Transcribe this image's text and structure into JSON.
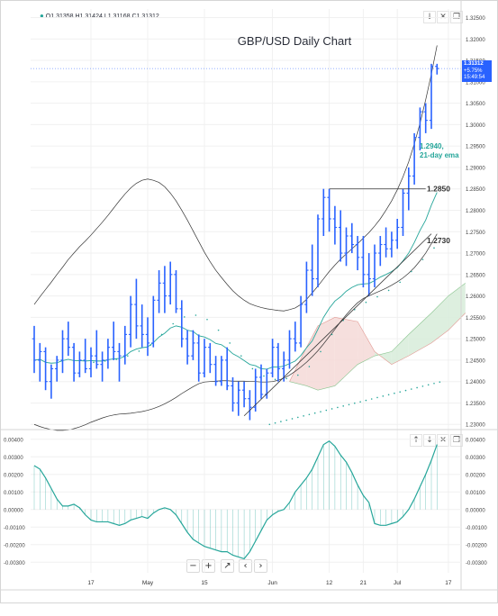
{
  "ohlc_header": {
    "marker": "●",
    "open": "O1.31358",
    "high": "H1.31424",
    "low": "L1.31168",
    "close": "C1.31312"
  },
  "main_buttons": [
    "↓",
    "✕",
    "❐"
  ],
  "sub_buttons": [
    "↑",
    "↓",
    "✕",
    "❐"
  ],
  "nav_buttons": [
    "−",
    "+",
    "↗",
    "‹",
    "›"
  ],
  "price_tag": {
    "price": "1.31312",
    "change": "+5.75%",
    "time": "15:49:54"
  },
  "colors": {
    "candle": "#2962ff",
    "ema": "#26a69a",
    "bands": "#333333",
    "cloud_bull": "#d7ecd9",
    "cloud_bear": "#f4d9d7",
    "oscillator": "#26a69a",
    "annotation": "#26a69a"
  },
  "chart_data": [
    {
      "type": "candlestick",
      "title": "GBP/USD Daily Chart",
      "yticks": [
        "1.32500",
        "1.32000",
        "1.31500",
        "1.31000",
        "1.30500",
        "1.30000",
        "1.29500",
        "1.29000",
        "1.28500",
        "1.28000",
        "1.27500",
        "1.27000",
        "1.26500",
        "1.26000",
        "1.25500",
        "1.25000",
        "1.24500",
        "1.24000",
        "1.23500",
        "1.23000"
      ],
      "ylim": [
        1.229,
        1.327
      ],
      "x_labels": [
        {
          "label": "17",
          "i": 10
        },
        {
          "label": "May",
          "i": 20
        },
        {
          "label": "15",
          "i": 30
        },
        {
          "label": "Jun",
          "i": 42
        },
        {
          "label": "12",
          "i": 52
        },
        {
          "label": "21",
          "i": 58
        },
        {
          "label": "Jul",
          "i": 64
        },
        {
          "label": "17",
          "i": 73
        }
      ],
      "annotations": [
        {
          "text": "1.2940,",
          "line2": "21-day ema",
          "price": 1.294,
          "color": "#26a69a"
        },
        {
          "text": "1.2850",
          "price": 1.285,
          "color": "#333333"
        },
        {
          "text": "1.2730",
          "price": 1.273,
          "color": "#333333"
        }
      ],
      "resistance": {
        "price": 1.285,
        "from_i": 52,
        "to_i": 69
      },
      "trendline": {
        "from": {
          "i": 37,
          "p": 1.232
        },
        "to": {
          "i": 70,
          "p": 1.2745
        }
      },
      "ohlc": [
        [
          1.25,
          1.253,
          1.242,
          1.245
        ],
        [
          1.245,
          1.249,
          1.24,
          1.247
        ],
        [
          1.247,
          1.248,
          1.238,
          1.24
        ],
        [
          1.24,
          1.244,
          1.236,
          1.243
        ],
        [
          1.243,
          1.246,
          1.24,
          1.245
        ],
        [
          1.245,
          1.252,
          1.242,
          1.25
        ],
        [
          1.25,
          1.254,
          1.246,
          1.248
        ],
        [
          1.248,
          1.249,
          1.24,
          1.242
        ],
        [
          1.242,
          1.247,
          1.241,
          1.245
        ],
        [
          1.245,
          1.25,
          1.242,
          1.243
        ],
        [
          1.243,
          1.248,
          1.241,
          1.246
        ],
        [
          1.246,
          1.252,
          1.243,
          1.244
        ],
        [
          1.244,
          1.247,
          1.24,
          1.245
        ],
        [
          1.245,
          1.25,
          1.243,
          1.248
        ],
        [
          1.248,
          1.254,
          1.245,
          1.247
        ],
        [
          1.247,
          1.249,
          1.24,
          1.246
        ],
        [
          1.246,
          1.253,
          1.244,
          1.251
        ],
        [
          1.251,
          1.26,
          1.248,
          1.258
        ],
        [
          1.258,
          1.264,
          1.25,
          1.253
        ],
        [
          1.253,
          1.258,
          1.248,
          1.251
        ],
        [
          1.251,
          1.255,
          1.246,
          1.249
        ],
        [
          1.249,
          1.26,
          1.248,
          1.259
        ],
        [
          1.259,
          1.266,
          1.256,
          1.263
        ],
        [
          1.263,
          1.267,
          1.256,
          1.26
        ],
        [
          1.26,
          1.268,
          1.258,
          1.265
        ],
        [
          1.265,
          1.266,
          1.256,
          1.257
        ],
        [
          1.257,
          1.259,
          1.248,
          1.25
        ],
        [
          1.25,
          1.252,
          1.244,
          1.246
        ],
        [
          1.246,
          1.252,
          1.245,
          1.249
        ],
        [
          1.249,
          1.251,
          1.24,
          1.242
        ],
        [
          1.242,
          1.25,
          1.241,
          1.248
        ],
        [
          1.248,
          1.249,
          1.242,
          1.244
        ],
        [
          1.244,
          1.246,
          1.239,
          1.24
        ],
        [
          1.24,
          1.246,
          1.239,
          1.245
        ],
        [
          1.245,
          1.248,
          1.238,
          1.239
        ],
        [
          1.239,
          1.241,
          1.233,
          1.235
        ],
        [
          1.235,
          1.24,
          1.232,
          1.238
        ],
        [
          1.238,
          1.24,
          1.234,
          1.236
        ],
        [
          1.236,
          1.238,
          1.231,
          1.234
        ],
        [
          1.234,
          1.243,
          1.233,
          1.241
        ],
        [
          1.241,
          1.244,
          1.236,
          1.237
        ],
        [
          1.237,
          1.243,
          1.236,
          1.242
        ],
        [
          1.242,
          1.25,
          1.241,
          1.248
        ],
        [
          1.248,
          1.249,
          1.24,
          1.243
        ],
        [
          1.243,
          1.247,
          1.24,
          1.245
        ],
        [
          1.245,
          1.252,
          1.243,
          1.25
        ],
        [
          1.25,
          1.254,
          1.247,
          1.249
        ],
        [
          1.249,
          1.26,
          1.248,
          1.258
        ],
        [
          1.258,
          1.268,
          1.256,
          1.266
        ],
        [
          1.266,
          1.272,
          1.26,
          1.264
        ],
        [
          1.264,
          1.279,
          1.262,
          1.278
        ],
        [
          1.278,
          1.285,
          1.274,
          1.283
        ],
        [
          1.283,
          1.285,
          1.275,
          1.278
        ],
        [
          1.278,
          1.281,
          1.272,
          1.276
        ],
        [
          1.276,
          1.28,
          1.268,
          1.27
        ],
        [
          1.27,
          1.276,
          1.267,
          1.274
        ],
        [
          1.274,
          1.277,
          1.27,
          1.272
        ],
        [
          1.272,
          1.274,
          1.266,
          1.269
        ],
        [
          1.269,
          1.274,
          1.262,
          1.265
        ],
        [
          1.265,
          1.27,
          1.26,
          1.264
        ],
        [
          1.264,
          1.272,
          1.262,
          1.27
        ],
        [
          1.27,
          1.274,
          1.267,
          1.272
        ],
        [
          1.272,
          1.276,
          1.269,
          1.271
        ],
        [
          1.271,
          1.275,
          1.269,
          1.273
        ],
        [
          1.273,
          1.278,
          1.271,
          1.276
        ],
        [
          1.276,
          1.285,
          1.274,
          1.284
        ],
        [
          1.284,
          1.29,
          1.28,
          1.288
        ],
        [
          1.288,
          1.298,
          1.286,
          1.297
        ],
        [
          1.297,
          1.304,
          1.294,
          1.303
        ],
        [
          1.303,
          1.305,
          1.298,
          1.301
        ],
        [
          1.301,
          1.3142,
          1.299,
          1.3136
        ],
        [
          1.3136,
          1.3142,
          1.3117,
          1.3131
        ]
      ],
      "ema": [
        1.245,
        1.2452,
        1.2445,
        1.2443,
        1.2444,
        1.2449,
        1.2452,
        1.2449,
        1.2449,
        1.2448,
        1.2449,
        1.2448,
        1.2448,
        1.2451,
        1.2453,
        1.2454,
        1.2459,
        1.247,
        1.2476,
        1.2479,
        1.2481,
        1.2491,
        1.2504,
        1.2513,
        1.2525,
        1.253,
        1.2527,
        1.252,
        1.2517,
        1.2507,
        1.2504,
        1.2498,
        1.2489,
        1.2486,
        1.2477,
        1.2465,
        1.2458,
        1.2449,
        1.244,
        1.2437,
        1.243,
        1.2429,
        1.2434,
        1.2434,
        1.2436,
        1.2442,
        1.2448,
        1.2461,
        1.2479,
        1.2495,
        1.2522,
        1.255,
        1.2571,
        1.2588,
        1.2598,
        1.2611,
        1.262,
        1.2626,
        1.2628,
        1.2629,
        1.2636,
        1.2644,
        1.265,
        1.2657,
        1.2666,
        1.2682,
        1.27,
        1.2725,
        1.2753,
        1.2777,
        1.2812,
        1.2842
      ],
      "sma": [
        null,
        null,
        null,
        null,
        null,
        null,
        null,
        null,
        null,
        null,
        1.244,
        1.2442,
        1.2443,
        1.2445,
        1.2447,
        1.245,
        1.2455,
        1.246,
        1.2466,
        1.2472,
        1.248,
        1.2492,
        1.2505,
        1.2518,
        1.253,
        1.254,
        1.2546,
        1.255,
        1.255,
        1.2547,
        1.254,
        1.253,
        1.2515,
        1.25,
        1.2485,
        1.247,
        1.2455,
        1.244,
        1.2425,
        1.2415,
        1.2408,
        1.2403,
        1.24,
        1.24,
        1.2402,
        1.2405,
        1.241,
        1.2418,
        1.243,
        1.2445,
        1.2465,
        1.2485,
        1.2505,
        1.2522,
        1.2538,
        1.2552,
        1.2563,
        1.2572,
        1.258,
        1.2586,
        1.2593,
        1.26,
        1.2608,
        1.2617,
        1.2627,
        1.2639,
        1.2652,
        1.2666,
        1.268,
        1.2693,
        1.2707,
        1.2718
      ],
      "upper": [
        1.258,
        1.2598,
        1.2615,
        1.2632,
        1.265,
        1.2667,
        1.2685,
        1.27,
        1.2715,
        1.2728,
        1.2742,
        1.2757,
        1.2772,
        1.2788,
        1.2805,
        1.2822,
        1.2838,
        1.2852,
        1.2863,
        1.287,
        1.2873,
        1.287,
        1.2865,
        1.2855,
        1.284,
        1.2822,
        1.28,
        1.2777,
        1.2752,
        1.2727,
        1.2702,
        1.268,
        1.266,
        1.2643,
        1.2627,
        1.2612,
        1.26,
        1.259,
        1.2582,
        1.2577,
        1.2573,
        1.257,
        1.2568,
        1.2566,
        1.2565,
        1.2568,
        1.2572,
        1.258,
        1.2592,
        1.2607,
        1.2623,
        1.264,
        1.2657,
        1.2672,
        1.2686,
        1.2698,
        1.271,
        1.2722,
        1.2735,
        1.2748,
        1.2763,
        1.278,
        1.28,
        1.2822,
        1.2848,
        1.2878,
        1.2913,
        1.2955,
        1.3003,
        1.3058,
        1.3118,
        1.3185
      ],
      "lower": [
        1.23,
        1.2295,
        1.2291,
        1.2288,
        1.2286,
        1.2286,
        1.2287,
        1.229,
        1.2294,
        1.2299,
        1.2305,
        1.231,
        1.2315,
        1.2319,
        1.2322,
        1.2324,
        1.2325,
        1.2326,
        1.2328,
        1.233,
        1.2333,
        1.2337,
        1.2342,
        1.2348,
        1.2355,
        1.2363,
        1.2372,
        1.238,
        1.2388,
        1.2395,
        1.2399,
        1.24,
        1.2401,
        1.2402,
        1.2402,
        1.2401,
        1.2401,
        1.2401,
        1.24,
        1.24,
        1.2399,
        1.2399,
        1.24,
        1.2403,
        1.2408,
        1.2415,
        1.2424,
        1.2434,
        1.2445,
        1.2458,
        1.2472,
        1.2488,
        1.2505,
        1.2522,
        1.254,
        1.2556,
        1.2571,
        1.2584,
        1.2594,
        1.26,
        1.2606,
        1.2612,
        1.2618,
        1.2625,
        1.2633,
        1.2642,
        1.2653,
        1.2666,
        1.2682,
        1.27,
        1.2722,
        1.2745
      ],
      "cloud": [
        {
          "from_i": 45,
          "a": 1.24,
          "b": 1.24
        },
        {
          "from_i": 48,
          "a": 1.239,
          "b": 1.248
        },
        {
          "from_i": 50,
          "a": 1.238,
          "b": 1.253
        },
        {
          "from_i": 53,
          "a": 1.239,
          "b": 1.255
        },
        {
          "from_i": 57,
          "a": 1.244,
          "b": 1.254
        },
        {
          "from_i": 60,
          "a": 1.246,
          "b": 1.247
        },
        {
          "from_i": 63,
          "a": 1.247,
          "b": 1.244
        },
        {
          "from_i": 66,
          "a": 1.251,
          "b": 1.246
        },
        {
          "from_i": 70,
          "a": 1.256,
          "b": 1.249
        },
        {
          "from_i": 73,
          "a": 1.26,
          "b": 1.252
        },
        {
          "from_i": 76,
          "a": 1.263,
          "b": 1.256
        }
      ],
      "lagging_dots": [
        1.256,
        1.2565,
        1.2565,
        1.256,
        1.255,
        1.254,
        1.253,
        1.252,
        1.251,
        1.25,
        1.249,
        1.248,
        1.247,
        1.246,
        1.245,
        1.244,
        1.243,
        1.242,
        1.241,
        1.24,
        1.239,
        1.238,
        1.237,
        1.236,
        1.235,
        1.234,
        1.233,
        1.232,
        1.231,
        1.23,
        1.229
      ]
    },
    {
      "type": "line",
      "name": "oscillator",
      "yticks": [
        "0.00400",
        "0.00300",
        "0.00200",
        "0.00100",
        "0.00000",
        "-0.00100",
        "-0.00200",
        "-0.00300"
      ],
      "yticks_right": [
        "0.00400",
        "0.00300",
        "0.00200",
        "0.00100",
        "0.00000",
        "-0.00100",
        "-0.00200",
        "-0.00300"
      ],
      "ylim": [
        -0.0036,
        0.0045
      ],
      "values": [
        0.0025,
        0.0023,
        0.0018,
        0.0012,
        0.0006,
        0.0002,
        0.0002,
        0.0003,
        0.0001,
        -0.0003,
        -0.0006,
        -0.0007,
        -0.0007,
        -0.0007,
        -0.0008,
        -0.0009,
        -0.0008,
        -0.0006,
        -0.0005,
        -0.0004,
        -0.0005,
        -0.0002,
        0.0,
        0.0001,
        0.0,
        -0.0003,
        -0.0008,
        -0.0013,
        -0.0017,
        -0.0019,
        -0.0021,
        -0.0022,
        -0.0023,
        -0.0024,
        -0.0024,
        -0.0026,
        -0.0027,
        -0.0028,
        -0.0024,
        -0.0018,
        -0.0012,
        -0.0006,
        -0.0003,
        -0.0001,
        0.0,
        0.0004,
        0.001,
        0.0014,
        0.0018,
        0.0023,
        0.003,
        0.0037,
        0.0039,
        0.0036,
        0.0031,
        0.0027,
        0.0021,
        0.0014,
        0.0008,
        0.0004,
        -0.0008,
        -0.0009,
        -0.0009,
        -0.0008,
        -0.0007,
        -0.0004,
        0.0,
        0.0006,
        0.0013,
        0.002,
        0.0028,
        0.0037
      ]
    }
  ]
}
